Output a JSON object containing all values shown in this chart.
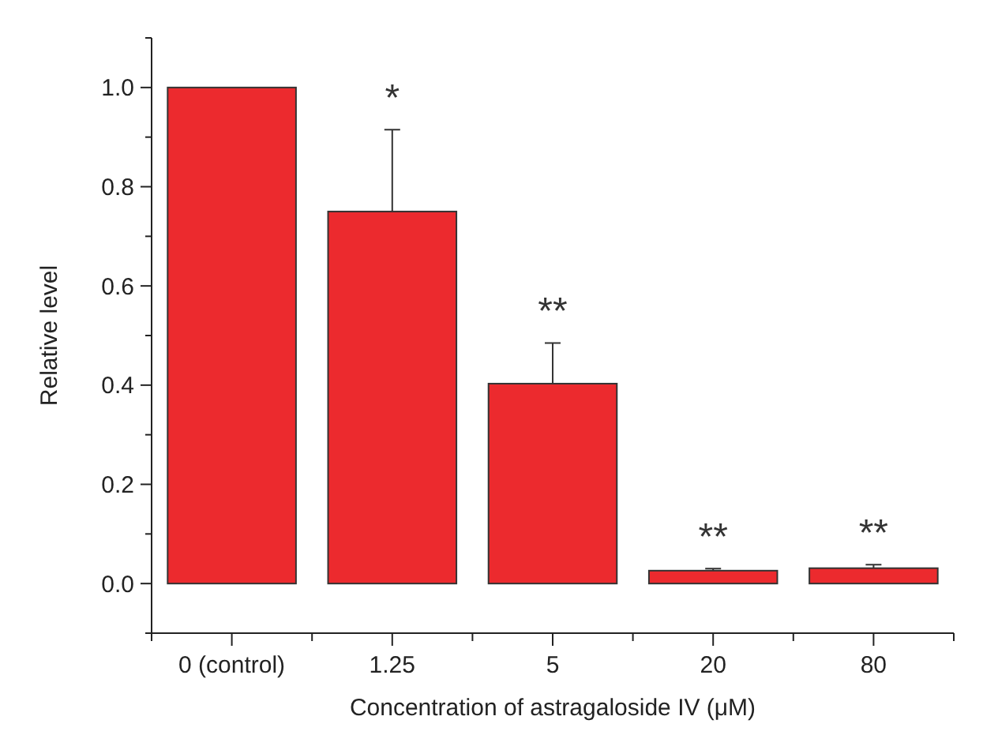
{
  "chart_data": {
    "type": "bar",
    "xlabel": "Concentration of astragaloside IV (μM)",
    "ylabel": "Relative level",
    "categories": [
      "0 (control)",
      "1.25",
      "5",
      "20",
      "80"
    ],
    "values": [
      1.0,
      0.75,
      0.403,
      0.026,
      0.031
    ],
    "errors": [
      null,
      0.165,
      0.082,
      0.004,
      0.007
    ],
    "color": "#ec2a2e",
    "ylim": [
      -0.1,
      1.1
    ],
    "yticks": [
      {
        "value": -0.1,
        "label": null
      },
      {
        "value": 0,
        "label": "0.0"
      },
      {
        "value": 0.1,
        "label": null
      },
      0.2,
      {
        "value": 0.3,
        "label": null
      },
      0.4,
      {
        "value": 0.5,
        "label": null
      },
      0.6,
      {
        "value": 0.7,
        "label": null
      },
      0.8,
      {
        "value": 0.9,
        "label": null
      },
      {
        "value": 1,
        "label": "1.0"
      },
      {
        "value": 1.1,
        "label": null
      }
    ],
    "annotations": [
      {
        "text": "*",
        "x": "1.25",
        "y": 0.915
      },
      {
        "text": "**",
        "x": "5",
        "y": 0.485
      },
      {
        "text": "**",
        "x": "20",
        "y": 0.03
      },
      {
        "text": "**",
        "x": "80",
        "y": 0.038
      }
    ],
    "grid": false
  }
}
